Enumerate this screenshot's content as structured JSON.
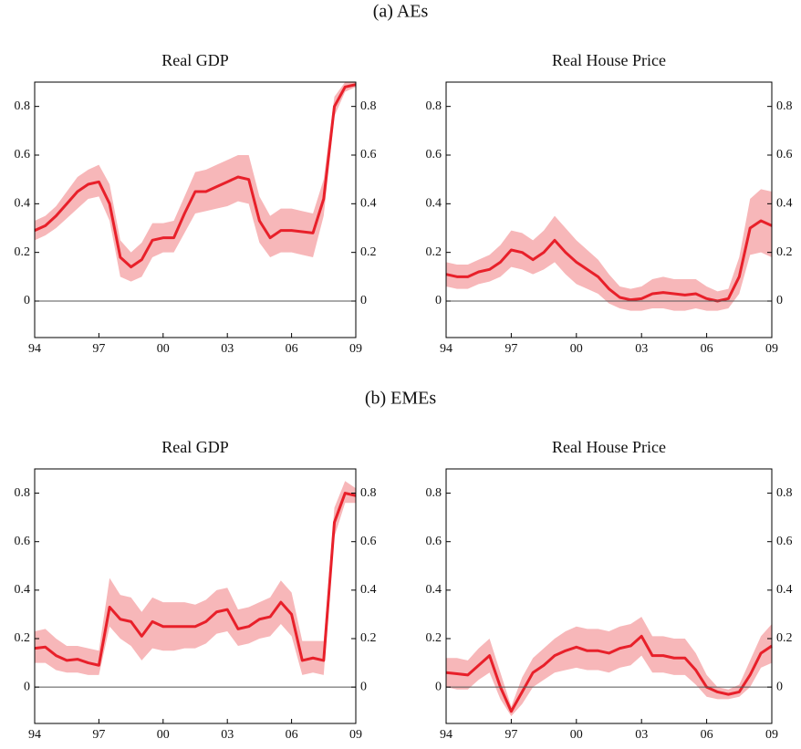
{
  "section_titles": [
    "(a)  AEs",
    "(b)  EMEs"
  ],
  "chart_data": [
    {
      "type": "line",
      "title": "Real GDP",
      "x": [
        1994,
        1994.5,
        1995,
        1995.5,
        1996,
        1996.5,
        1997,
        1997.5,
        1998,
        1998.5,
        1999,
        1999.5,
        2000,
        2000.5,
        2001,
        2001.5,
        2002,
        2002.5,
        2003,
        2003.5,
        2004,
        2004.5,
        2005,
        2005.5,
        2006,
        2006.5,
        2007,
        2007.5,
        2008,
        2008.5,
        2009
      ],
      "series": [
        {
          "color": "#e8202a",
          "band_color": "#f7b7b9",
          "values": [
            0.29,
            0.31,
            0.35,
            0.4,
            0.45,
            0.48,
            0.49,
            0.4,
            0.18,
            0.14,
            0.17,
            0.25,
            0.26,
            0.26,
            0.36,
            0.45,
            0.45,
            0.47,
            0.49,
            0.51,
            0.5,
            0.33,
            0.26,
            0.29,
            0.29,
            0.285,
            0.28,
            0.42,
            0.8,
            0.88,
            0.89
          ],
          "lower": [
            0.25,
            0.27,
            0.3,
            0.34,
            0.38,
            0.42,
            0.43,
            0.33,
            0.1,
            0.08,
            0.1,
            0.18,
            0.2,
            0.2,
            0.28,
            0.36,
            0.37,
            0.38,
            0.39,
            0.41,
            0.4,
            0.24,
            0.18,
            0.2,
            0.2,
            0.19,
            0.18,
            0.35,
            0.76,
            0.86,
            0.88
          ],
          "upper": [
            0.33,
            0.35,
            0.39,
            0.45,
            0.51,
            0.54,
            0.56,
            0.48,
            0.25,
            0.2,
            0.24,
            0.32,
            0.32,
            0.33,
            0.43,
            0.53,
            0.54,
            0.56,
            0.58,
            0.6,
            0.6,
            0.43,
            0.35,
            0.38,
            0.38,
            0.37,
            0.36,
            0.5,
            0.84,
            0.9,
            0.9
          ]
        }
      ],
      "xlim": [
        1994,
        2009
      ],
      "ylim": [
        -0.15,
        0.9
      ],
      "xticks": [
        {
          "value": 1994,
          "label": "94"
        },
        {
          "value": 1997,
          "label": "97"
        },
        {
          "value": 2000,
          "label": "00"
        },
        {
          "value": 2003,
          "label": "03"
        },
        {
          "value": 2006,
          "label": "06"
        },
        {
          "value": 2009,
          "label": "09"
        }
      ],
      "yticks": [
        0,
        0.2,
        0.4,
        0.6,
        0.8
      ],
      "zero_line": true
    },
    {
      "type": "line",
      "title": "Real House Price",
      "x": [
        1994,
        1994.5,
        1995,
        1995.5,
        1996,
        1996.5,
        1997,
        1997.5,
        1998,
        1998.5,
        1999,
        1999.5,
        2000,
        2000.5,
        2001,
        2001.5,
        2002,
        2002.5,
        2003,
        2003.5,
        2004,
        2004.5,
        2005,
        2005.5,
        2006,
        2006.5,
        2007,
        2007.5,
        2008,
        2008.5,
        2009
      ],
      "series": [
        {
          "color": "#e8202a",
          "band_color": "#f7b7b9",
          "values": [
            0.11,
            0.1,
            0.1,
            0.12,
            0.13,
            0.16,
            0.21,
            0.2,
            0.17,
            0.2,
            0.25,
            0.2,
            0.16,
            0.13,
            0.1,
            0.05,
            0.015,
            0.005,
            0.01,
            0.03,
            0.035,
            0.03,
            0.025,
            0.03,
            0.01,
            0.0,
            0.01,
            0.1,
            0.3,
            0.33,
            0.31
          ],
          "lower": [
            0.06,
            0.05,
            0.05,
            0.07,
            0.08,
            0.1,
            0.14,
            0.13,
            0.11,
            0.13,
            0.16,
            0.11,
            0.07,
            0.05,
            0.03,
            -0.01,
            -0.03,
            -0.04,
            -0.04,
            -0.03,
            -0.03,
            -0.04,
            -0.04,
            -0.03,
            -0.04,
            -0.04,
            -0.03,
            0.03,
            0.19,
            0.2,
            0.18
          ],
          "upper": [
            0.16,
            0.15,
            0.15,
            0.17,
            0.19,
            0.23,
            0.29,
            0.28,
            0.25,
            0.29,
            0.35,
            0.3,
            0.25,
            0.21,
            0.17,
            0.11,
            0.06,
            0.05,
            0.06,
            0.09,
            0.1,
            0.09,
            0.09,
            0.09,
            0.06,
            0.04,
            0.05,
            0.18,
            0.42,
            0.46,
            0.45
          ]
        }
      ],
      "xlim": [
        1994,
        2009
      ],
      "ylim": [
        -0.15,
        0.9
      ],
      "xticks": [
        {
          "value": 1994,
          "label": "94"
        },
        {
          "value": 1997,
          "label": "97"
        },
        {
          "value": 2000,
          "label": "00"
        },
        {
          "value": 2003,
          "label": "03"
        },
        {
          "value": 2006,
          "label": "06"
        },
        {
          "value": 2009,
          "label": "09"
        }
      ],
      "yticks": [
        0,
        0.2,
        0.4,
        0.6,
        0.8
      ],
      "zero_line": true
    },
    {
      "type": "line",
      "title": "Real GDP",
      "x": [
        1994,
        1994.5,
        1995,
        1995.5,
        1996,
        1996.5,
        1997,
        1997.5,
        1998,
        1998.5,
        1999,
        1999.5,
        2000,
        2000.5,
        2001,
        2001.5,
        2002,
        2002.5,
        2003,
        2003.5,
        2004,
        2004.5,
        2005,
        2005.5,
        2006,
        2006.5,
        2007,
        2007.5,
        2008,
        2008.5,
        2009
      ],
      "series": [
        {
          "color": "#e8202a",
          "band_color": "#f7b7b9",
          "values": [
            0.16,
            0.165,
            0.13,
            0.11,
            0.115,
            0.1,
            0.09,
            0.33,
            0.28,
            0.27,
            0.21,
            0.27,
            0.25,
            0.25,
            0.25,
            0.25,
            0.27,
            0.31,
            0.32,
            0.24,
            0.25,
            0.28,
            0.29,
            0.35,
            0.3,
            0.11,
            0.12,
            0.11,
            0.68,
            0.8,
            0.79
          ],
          "lower": [
            0.1,
            0.1,
            0.07,
            0.06,
            0.06,
            0.05,
            0.05,
            0.25,
            0.2,
            0.17,
            0.11,
            0.16,
            0.15,
            0.15,
            0.16,
            0.16,
            0.18,
            0.22,
            0.23,
            0.17,
            0.18,
            0.2,
            0.21,
            0.26,
            0.21,
            0.05,
            0.06,
            0.05,
            0.62,
            0.76,
            0.76
          ],
          "upper": [
            0.23,
            0.24,
            0.2,
            0.17,
            0.17,
            0.16,
            0.15,
            0.45,
            0.38,
            0.37,
            0.31,
            0.37,
            0.35,
            0.35,
            0.35,
            0.34,
            0.36,
            0.4,
            0.41,
            0.32,
            0.33,
            0.35,
            0.37,
            0.44,
            0.39,
            0.19,
            0.19,
            0.19,
            0.74,
            0.85,
            0.82
          ]
        }
      ],
      "xlim": [
        1994,
        2009
      ],
      "ylim": [
        -0.15,
        0.9
      ],
      "xticks": [
        {
          "value": 1994,
          "label": "94"
        },
        {
          "value": 1997,
          "label": "97"
        },
        {
          "value": 2000,
          "label": "00"
        },
        {
          "value": 2003,
          "label": "03"
        },
        {
          "value": 2006,
          "label": "06"
        },
        {
          "value": 2009,
          "label": "09"
        }
      ],
      "yticks": [
        0,
        0.2,
        0.4,
        0.6,
        0.8
      ],
      "zero_line": true
    },
    {
      "type": "line",
      "title": "Real House Price",
      "x": [
        1994,
        1994.5,
        1995,
        1995.5,
        1996,
        1996.5,
        1997,
        1997.5,
        1998,
        1998.5,
        1999,
        1999.5,
        2000,
        2000.5,
        2001,
        2001.5,
        2002,
        2002.5,
        2003,
        2003.5,
        2004,
        2004.5,
        2005,
        2005.5,
        2006,
        2006.5,
        2007,
        2007.5,
        2008,
        2008.5,
        2009
      ],
      "series": [
        {
          "color": "#e8202a",
          "band_color": "#f7b7b9",
          "values": [
            0.06,
            0.055,
            0.05,
            0.09,
            0.13,
            0.0,
            -0.1,
            -0.02,
            0.06,
            0.09,
            0.13,
            0.15,
            0.165,
            0.15,
            0.15,
            0.14,
            0.16,
            0.17,
            0.21,
            0.13,
            0.13,
            0.12,
            0.12,
            0.07,
            0.0,
            -0.02,
            -0.03,
            -0.02,
            0.05,
            0.14,
            0.17
          ],
          "lower": [
            0.0,
            -0.01,
            -0.01,
            0.03,
            0.06,
            -0.05,
            -0.12,
            -0.07,
            0.0,
            0.03,
            0.06,
            0.07,
            0.08,
            0.07,
            0.07,
            0.06,
            0.08,
            0.09,
            0.13,
            0.06,
            0.06,
            0.05,
            0.05,
            0.01,
            -0.04,
            -0.05,
            -0.05,
            -0.04,
            0.0,
            0.08,
            0.1
          ],
          "upper": [
            0.12,
            0.12,
            0.11,
            0.16,
            0.2,
            0.06,
            -0.08,
            0.04,
            0.12,
            0.16,
            0.2,
            0.23,
            0.25,
            0.24,
            0.24,
            0.23,
            0.25,
            0.26,
            0.29,
            0.21,
            0.21,
            0.2,
            0.2,
            0.14,
            0.05,
            0.0,
            -0.01,
            0.01,
            0.11,
            0.21,
            0.26
          ]
        }
      ],
      "xlim": [
        1994,
        2009
      ],
      "ylim": [
        -0.15,
        0.9
      ],
      "xticks": [
        {
          "value": 1994,
          "label": "94"
        },
        {
          "value": 1997,
          "label": "97"
        },
        {
          "value": 2000,
          "label": "00"
        },
        {
          "value": 2003,
          "label": "03"
        },
        {
          "value": 2006,
          "label": "06"
        },
        {
          "value": 2009,
          "label": "09"
        }
      ],
      "yticks": [
        0,
        0.2,
        0.4,
        0.6,
        0.8
      ],
      "zero_line": true
    }
  ]
}
